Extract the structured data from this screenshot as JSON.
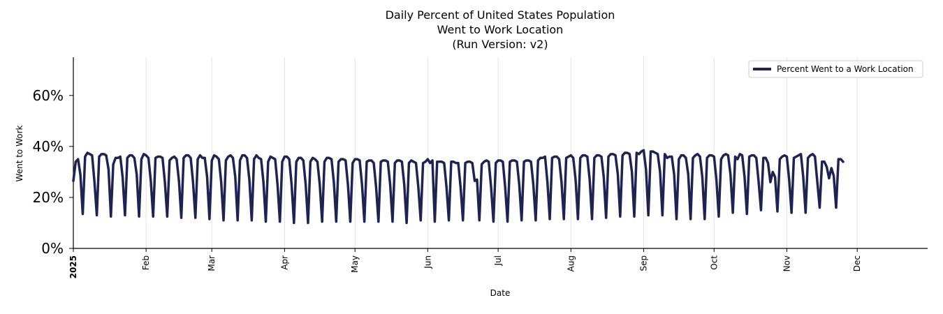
{
  "chart_data": {
    "type": "line",
    "title_lines": [
      "Daily Percent of United States Population",
      "Went to Work Location",
      "(Run Version: v2)"
    ],
    "xlabel": "Date",
    "ylabel": "Went to Work",
    "ylim": [
      0,
      75
    ],
    "yticks": [
      0,
      20,
      40,
      60
    ],
    "ytick_labels": [
      "0%",
      "20%",
      "40%",
      "60%"
    ],
    "xlim_days": [
      0,
      364
    ],
    "xticks": [
      {
        "label": "2025",
        "day": 0,
        "bold": true
      },
      {
        "label": "Feb",
        "day": 31,
        "bold": false
      },
      {
        "label": "Mar",
        "day": 59,
        "bold": false
      },
      {
        "label": "Apr",
        "day": 90,
        "bold": false
      },
      {
        "label": "May",
        "day": 120,
        "bold": false
      },
      {
        "label": "Jun",
        "day": 151,
        "bold": false
      },
      {
        "label": "Jul",
        "day": 181,
        "bold": false
      },
      {
        "label": "Aug",
        "day": 212,
        "bold": false
      },
      {
        "label": "Sep",
        "day": 243,
        "bold": false
      },
      {
        "label": "Oct",
        "day": 273,
        "bold": false
      },
      {
        "label": "Nov",
        "day": 304,
        "bold": false
      },
      {
        "label": "Dec",
        "day": 334,
        "bold": false
      }
    ],
    "grid": "vertical",
    "legend_position": "top-right",
    "series": [
      {
        "name": "Percent Went to a Work Location",
        "color": "#1f2352",
        "start_date": "2025-01-01",
        "values": [
          26.5,
          34,
          35,
          29,
          13.5,
          36,
          37.5,
          37,
          36.5,
          26,
          13,
          36,
          37,
          37,
          36.5,
          31,
          12.5,
          33,
          35.5,
          35.5,
          36,
          28,
          13,
          35.5,
          36.5,
          36.5,
          35.5,
          29,
          12.5,
          35,
          37,
          36.5,
          35.5,
          26.5,
          12.5,
          35.5,
          36,
          36,
          35.5,
          26,
          12.5,
          34.5,
          35.5,
          36,
          35,
          26.5,
          12,
          35.5,
          36.5,
          36.5,
          35.5,
          26,
          12,
          35,
          36.5,
          35.5,
          35.5,
          28,
          11.5,
          34.5,
          36.5,
          36,
          35,
          26,
          11,
          34.5,
          36,
          36.5,
          35.5,
          28,
          11,
          34.5,
          36.5,
          36.5,
          35.5,
          27,
          11,
          35,
          36.5,
          35.5,
          35,
          26,
          10.5,
          34,
          36,
          35.5,
          35,
          25,
          10.5,
          34,
          36,
          36,
          35,
          25,
          10,
          34,
          35.5,
          35.5,
          34.5,
          25,
          10,
          34,
          35.5,
          35,
          34,
          25,
          10.5,
          34,
          35.5,
          35.5,
          35,
          26,
          10.5,
          34,
          35,
          35,
          34.5,
          25,
          10.5,
          33.5,
          35,
          35,
          34.5,
          25,
          10.5,
          34,
          34.5,
          34.5,
          33.5,
          24,
          10.5,
          34,
          34.5,
          34.5,
          34,
          25,
          10.5,
          33.5,
          34.5,
          34.5,
          34,
          25,
          10,
          33.5,
          34.5,
          34,
          33.5,
          24,
          11,
          33.5,
          34,
          35,
          33.5,
          34.5,
          10.5,
          34,
          34,
          34,
          33.5,
          24,
          11,
          34,
          34,
          33.5,
          33.5,
          24,
          11,
          33.5,
          34,
          34,
          33.5,
          26.5,
          27,
          11,
          33,
          34,
          34.5,
          34,
          24,
          10.5,
          33.5,
          34.5,
          34.5,
          34,
          24,
          10.5,
          34,
          34.5,
          34.5,
          34,
          25,
          11,
          34,
          34.5,
          34.5,
          34,
          25,
          11,
          34.5,
          35.5,
          35.5,
          36,
          26,
          11.5,
          35.5,
          36,
          36,
          35,
          26,
          11.5,
          35.5,
          36,
          36.5,
          35.5,
          27,
          11.5,
          35.5,
          36.5,
          36.5,
          36,
          27,
          11.5,
          35.5,
          36.5,
          36.5,
          36,
          28,
          12,
          36,
          37,
          37,
          36.5,
          29,
          12.5,
          36.5,
          37.5,
          37.5,
          37,
          30,
          12.5,
          37.5,
          37,
          38,
          38.5,
          31,
          13,
          38,
          38,
          37.5,
          37,
          30,
          13,
          37,
          35.5,
          36,
          36,
          29,
          11.5,
          35,
          36.5,
          36.5,
          35.5,
          29,
          11.5,
          35.5,
          36.5,
          37,
          36,
          28,
          11.5,
          35.5,
          36.5,
          36.5,
          36,
          27,
          12.5,
          35,
          36.5,
          37,
          36.5,
          29,
          14,
          36,
          35,
          37,
          36.5,
          28,
          13.5,
          36,
          36.5,
          36.5,
          35.5,
          26,
          15,
          35.5,
          35.5,
          33.5,
          26,
          30,
          28,
          14.5,
          35,
          36,
          36.5,
          36,
          27,
          14,
          35.5,
          36,
          36.5,
          37,
          28,
          14,
          35.5,
          36.5,
          37,
          36,
          26,
          16,
          34,
          34,
          32,
          27.5,
          31.5,
          28.5,
          16,
          35,
          35,
          34
        ]
      }
    ]
  }
}
